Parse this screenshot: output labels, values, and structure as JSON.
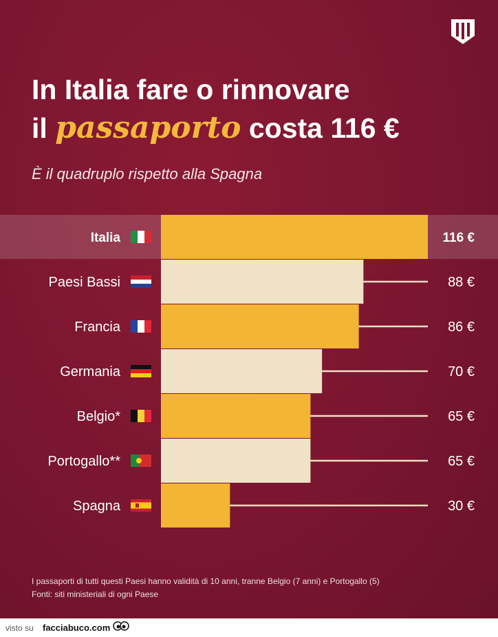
{
  "title": {
    "line1": "In Italia fare o rinnovare",
    "line2_prefix": "il ",
    "highlight": "passaporto",
    "line2_suffix": " costa 116 €"
  },
  "subtitle": "È il quadruplo rispetto alla Spagna",
  "logo_icon": "w-shield-icon",
  "chart_data": {
    "type": "bar",
    "orientation": "horizontal",
    "categories": [
      "Italia",
      "Paesi Bassi",
      "Francia",
      "Germania",
      "Belgio*",
      "Portogallo**",
      "Spagna"
    ],
    "values": [
      116,
      88,
      86,
      70,
      65,
      65,
      30
    ],
    "value_labels": [
      "116 €",
      "88 €",
      "86 €",
      "70 €",
      "65 €",
      "65 €",
      "30 €"
    ],
    "flags": [
      "flag-italy-icon",
      "flag-netherlands-icon",
      "flag-france-icon",
      "flag-germany-icon",
      "flag-belgium-icon",
      "flag-portugal-icon",
      "flag-spain-icon"
    ],
    "bar_colors": [
      "#f3b533",
      "#efe2c7",
      "#f3b533",
      "#efe2c7",
      "#f3b533",
      "#efe2c7",
      "#f3b533"
    ],
    "highlight_category": "Italia",
    "xlim": [
      0,
      116
    ],
    "grid": false,
    "legend": "none"
  },
  "footnote": {
    "line1": "I passaporti di tutti questi Paesi hanno validità di 10 anni, tranne Belgio (7 anni) e Portogallo (5)",
    "line2": "Fonti: siti ministeriali di ogni Paese"
  },
  "watermark": {
    "visto": "visto su",
    "site": "facciabuco.com",
    "icon": "eyes-icon"
  },
  "colors": {
    "background": "#7a1630",
    "accent": "#f4b83a",
    "bar_light": "#efe2c7",
    "text": "#ffffff"
  }
}
